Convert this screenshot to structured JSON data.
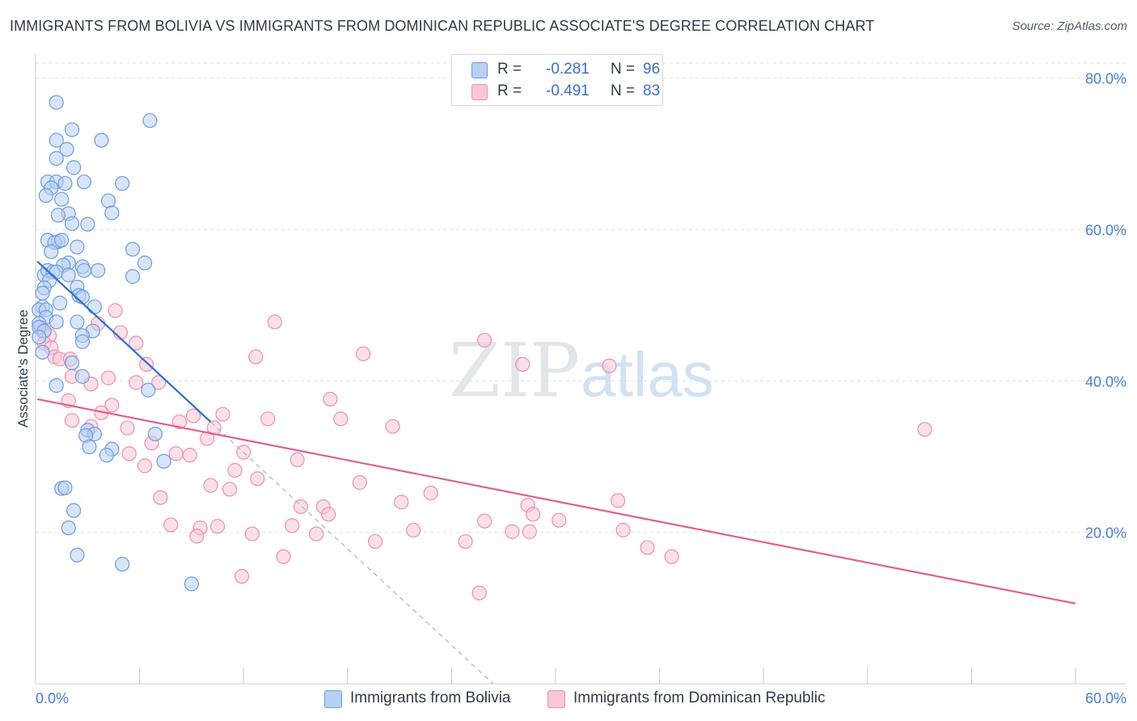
{
  "title": "IMMIGRANTS FROM BOLIVIA VS IMMIGRANTS FROM DOMINICAN REPUBLIC ASSOCIATE'S DEGREE CORRELATION CHART",
  "source": "Source: ZipAtlas.com",
  "watermark": "ZIPatlas",
  "colors": {
    "blue_fill": "#b8d0f2",
    "blue_stroke": "#6d9be0",
    "blue_line": "#2f6fd0",
    "pink_fill": "#f9c7d6",
    "pink_stroke": "#ec8fb0",
    "pink_line": "#e0608e",
    "tick_text": "#4a7fd0",
    "grid": "#dfe2e6"
  },
  "legend": {
    "rows": [
      {
        "r_label": "R =",
        "r_value": "-0.281",
        "n_label": "N =",
        "n_value": "96"
      },
      {
        "r_label": "R =",
        "r_value": "-0.491",
        "n_label": "N =",
        "n_value": "83"
      }
    ]
  },
  "chart_data": {
    "type": "scatter",
    "title": "IMMIGRANTS FROM BOLIVIA VS IMMIGRANTS FROM DOMINICAN REPUBLIC ASSOCIATE'S DEGREE CORRELATION CHART",
    "xlabel": "",
    "ylabel": "Associate's Degree",
    "xlim": [
      0,
      60
    ],
    "ylim": [
      0,
      82
    ],
    "x_tick_labels": [
      "0.0%",
      "60.0%"
    ],
    "y_ticks": [
      20,
      40,
      60,
      80
    ],
    "y_tick_labels": [
      "20.0%",
      "40.0%",
      "60.0%",
      "80.0%"
    ],
    "grid": true,
    "legend_placement": "top-center",
    "series": [
      {
        "name": "Immigrants from Bolivia",
        "color": "#6d9be0",
        "points": [
          [
            1.2,
            76.8
          ],
          [
            6.6,
            74.4
          ],
          [
            2.1,
            73.2
          ],
          [
            1.2,
            71.8
          ],
          [
            3.8,
            71.8
          ],
          [
            1.8,
            70.6
          ],
          [
            1.2,
            69.4
          ],
          [
            2.2,
            68.2
          ],
          [
            0.7,
            66.3
          ],
          [
            1.2,
            66.3
          ],
          [
            2.8,
            66.3
          ],
          [
            1.7,
            66.1
          ],
          [
            5.0,
            66.1
          ],
          [
            0.9,
            65.5
          ],
          [
            0.6,
            64.5
          ],
          [
            1.5,
            64.0
          ],
          [
            4.2,
            63.8
          ],
          [
            4.4,
            62.2
          ],
          [
            1.9,
            62.1
          ],
          [
            1.3,
            61.9
          ],
          [
            2.1,
            60.8
          ],
          [
            3.0,
            60.7
          ],
          [
            0.7,
            58.6
          ],
          [
            1.3,
            58.4
          ],
          [
            1.1,
            58.3
          ],
          [
            1.5,
            58.6
          ],
          [
            2.4,
            57.7
          ],
          [
            5.6,
            57.4
          ],
          [
            0.9,
            57.1
          ],
          [
            1.9,
            55.6
          ],
          [
            6.3,
            55.6
          ],
          [
            1.6,
            55.3
          ],
          [
            2.7,
            55.1
          ],
          [
            0.5,
            54.0
          ],
          [
            0.7,
            54.6
          ],
          [
            1.0,
            54.4
          ],
          [
            3.6,
            54.6
          ],
          [
            1.2,
            54.4
          ],
          [
            2.8,
            54.6
          ],
          [
            1.9,
            54.0
          ],
          [
            5.6,
            53.8
          ],
          [
            0.8,
            53.3
          ],
          [
            2.4,
            52.4
          ],
          [
            0.5,
            52.3
          ],
          [
            0.4,
            51.6
          ],
          [
            2.5,
            51.3
          ],
          [
            2.7,
            51.1
          ],
          [
            0.4,
            49.8
          ],
          [
            1.4,
            50.3
          ],
          [
            3.4,
            49.8
          ],
          [
            0.2,
            49.4
          ],
          [
            0.6,
            49.4
          ],
          [
            0.6,
            48.4
          ],
          [
            1.2,
            47.8
          ],
          [
            2.4,
            47.8
          ],
          [
            0.2,
            47.6
          ],
          [
            0.2,
            47.1
          ],
          [
            0.5,
            46.6
          ],
          [
            3.3,
            46.6
          ],
          [
            2.7,
            46.0
          ],
          [
            0.2,
            45.8
          ],
          [
            2.7,
            45.2
          ],
          [
            0.4,
            43.8
          ],
          [
            2.1,
            42.4
          ],
          [
            2.7,
            40.6
          ],
          [
            1.2,
            39.4
          ],
          [
            6.5,
            38.8
          ],
          [
            3.0,
            33.5
          ],
          [
            3.4,
            33.0
          ],
          [
            6.9,
            33.0
          ],
          [
            2.9,
            32.8
          ],
          [
            3.1,
            31.3
          ],
          [
            4.4,
            31.0
          ],
          [
            4.1,
            30.2
          ],
          [
            7.4,
            29.4
          ],
          [
            1.5,
            25.8
          ],
          [
            1.7,
            25.9
          ],
          [
            2.2,
            22.9
          ],
          [
            1.9,
            20.6
          ],
          [
            2.4,
            17.0
          ],
          [
            5.0,
            15.8
          ],
          [
            9.0,
            13.2
          ]
        ]
      },
      {
        "name": "Immigrants from Dominican Republic",
        "color": "#ec8fb0",
        "points": [
          [
            4.6,
            49.3
          ],
          [
            13.8,
            47.8
          ],
          [
            3.6,
            47.6
          ],
          [
            0.3,
            47.1
          ],
          [
            0.4,
            46.6
          ],
          [
            4.9,
            46.4
          ],
          [
            0.8,
            46.0
          ],
          [
            0.5,
            45.0
          ],
          [
            5.8,
            45.0
          ],
          [
            25.9,
            45.4
          ],
          [
            0.9,
            44.4
          ],
          [
            18.9,
            43.6
          ],
          [
            12.7,
            43.2
          ],
          [
            1.1,
            43.2
          ],
          [
            1.4,
            42.9
          ],
          [
            2.0,
            42.9
          ],
          [
            6.4,
            42.2
          ],
          [
            28.1,
            42.2
          ],
          [
            33.1,
            42.0
          ],
          [
            2.1,
            40.6
          ],
          [
            4.2,
            40.4
          ],
          [
            3.2,
            39.6
          ],
          [
            5.8,
            39.8
          ],
          [
            7.1,
            39.8
          ],
          [
            17.0,
            37.6
          ],
          [
            1.9,
            37.4
          ],
          [
            4.4,
            36.8
          ],
          [
            3.8,
            35.8
          ],
          [
            9.1,
            35.4
          ],
          [
            10.8,
            35.6
          ],
          [
            13.4,
            35.0
          ],
          [
            17.6,
            35.0
          ],
          [
            2.1,
            34.8
          ],
          [
            3.2,
            34.0
          ],
          [
            20.6,
            34.0
          ],
          [
            5.3,
            33.8
          ],
          [
            10.3,
            33.8
          ],
          [
            8.3,
            34.6
          ],
          [
            51.3,
            33.6
          ],
          [
            9.9,
            32.4
          ],
          [
            6.7,
            31.8
          ],
          [
            8.1,
            30.4
          ],
          [
            8.9,
            30.2
          ],
          [
            12.0,
            30.6
          ],
          [
            5.4,
            30.4
          ],
          [
            15.1,
            29.6
          ],
          [
            11.5,
            28.2
          ],
          [
            6.3,
            28.8
          ],
          [
            12.8,
            27.1
          ],
          [
            18.7,
            26.6
          ],
          [
            10.1,
            26.2
          ],
          [
            11.2,
            25.7
          ],
          [
            22.8,
            25.2
          ],
          [
            7.2,
            24.6
          ],
          [
            33.6,
            24.2
          ],
          [
            21.1,
            24.0
          ],
          [
            28.4,
            23.6
          ],
          [
            15.3,
            23.4
          ],
          [
            16.6,
            23.4
          ],
          [
            16.9,
            22.4
          ],
          [
            28.7,
            22.4
          ],
          [
            30.2,
            21.6
          ],
          [
            25.9,
            21.5
          ],
          [
            7.8,
            21.0
          ],
          [
            9.5,
            20.6
          ],
          [
            10.5,
            20.8
          ],
          [
            14.8,
            20.9
          ],
          [
            21.8,
            20.3
          ],
          [
            33.9,
            20.3
          ],
          [
            27.5,
            20.1
          ],
          [
            28.5,
            20.1
          ],
          [
            12.5,
            19.8
          ],
          [
            16.2,
            19.8
          ],
          [
            9.3,
            19.5
          ],
          [
            19.6,
            18.8
          ],
          [
            24.8,
            18.8
          ],
          [
            35.3,
            18.0
          ],
          [
            14.3,
            16.8
          ],
          [
            36.7,
            16.8
          ],
          [
            11.9,
            14.2
          ],
          [
            25.6,
            12.0
          ]
        ]
      }
    ],
    "trend_lines": [
      {
        "series": "Immigrants from Bolivia",
        "from": [
          0.1,
          55.8
        ],
        "to": [
          10.1,
          34.6
        ],
        "dashed_to": [
          26.4,
          0.0
        ]
      },
      {
        "series": "Immigrants from Dominican Republic",
        "from": [
          0.1,
          37.6
        ],
        "to": [
          60.0,
          10.6
        ]
      }
    ]
  }
}
